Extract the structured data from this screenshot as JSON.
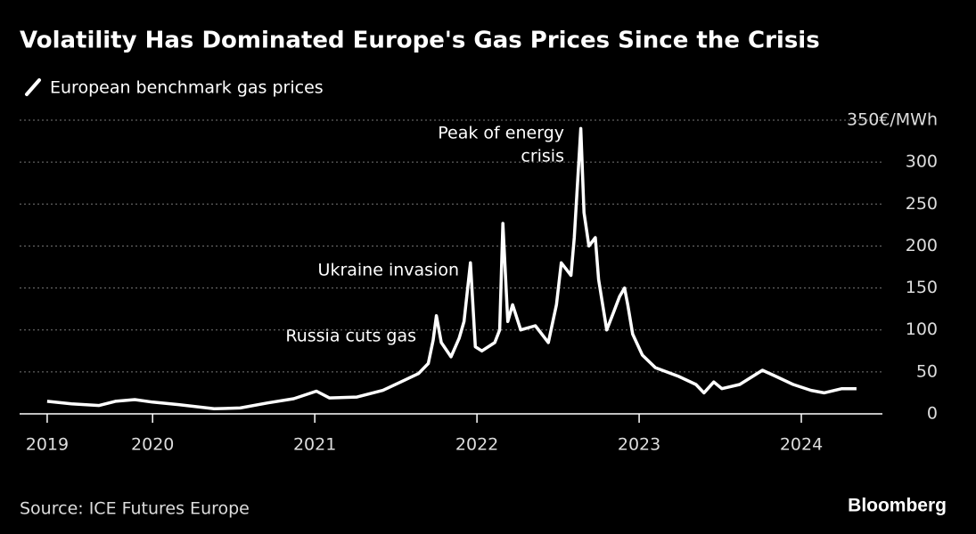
{
  "chart_data": {
    "type": "line",
    "title": "Volatility Has Dominated Europe's Gas Prices Since the Crisis",
    "source": "Source: ICE Futures Europe",
    "brand": "Bloomberg",
    "annotations": [
      [
        "Peak of energy",
        "crisis"
      ],
      [
        "Ukraine invasion"
      ],
      [
        "Russia cuts gas"
      ]
    ],
    "x": [
      2019.35,
      2019.5,
      2019.67,
      2019.77,
      2019.89,
      2020.0,
      2020.16,
      2020.38,
      2020.54,
      2020.71,
      2020.87,
      2021.01,
      2021.09,
      2021.26,
      2021.42,
      2021.53,
      2021.64,
      2021.7,
      2021.73,
      2021.75,
      2021.78,
      2021.84,
      2021.89,
      2021.92,
      2021.96,
      2021.99,
      2022.03,
      2022.11,
      2022.14,
      2022.16,
      2022.19,
      2022.22,
      2022.27,
      2022.36,
      2022.44,
      2022.49,
      2022.52,
      2022.58,
      2022.6,
      2022.64,
      2022.66,
      2022.69,
      2022.73,
      2022.75,
      2022.8,
      2022.84,
      2022.88,
      2022.91,
      2022.93,
      2022.96,
      2023.02,
      2023.1,
      2023.24,
      2023.35,
      2023.4,
      2023.46,
      2023.51,
      2023.62,
      2023.76,
      2023.84,
      2023.95,
      2024.06,
      2024.14,
      2024.25,
      2024.34
    ],
    "series": [
      {
        "name": "European benchmark gas prices",
        "color": "#ffffff",
        "values": [
          15,
          12,
          10,
          15,
          17,
          14,
          11,
          6,
          7,
          13,
          18,
          27,
          19,
          20,
          28,
          38,
          48,
          60,
          88,
          117,
          85,
          68,
          90,
          110,
          180,
          80,
          75,
          85,
          100,
          227,
          110,
          130,
          100,
          105,
          85,
          130,
          180,
          165,
          210,
          340,
          240,
          200,
          210,
          160,
          100,
          120,
          140,
          150,
          130,
          95,
          70,
          55,
          45,
          35,
          25,
          38,
          30,
          35,
          52,
          45,
          35,
          28,
          25,
          30,
          30
        ]
      }
    ],
    "xlim": [
      2019.18,
      2024.5
    ],
    "xticks": [
      {
        "value": 2019.35,
        "label": "2019"
      },
      2020,
      2021,
      2022,
      2023,
      2024
    ],
    "ylim": [
      0,
      350
    ],
    "yticks": [
      0,
      50,
      100,
      150,
      200,
      250,
      300,
      {
        "value": 350,
        "label": "350€/MWh"
      }
    ],
    "grid": true
  }
}
